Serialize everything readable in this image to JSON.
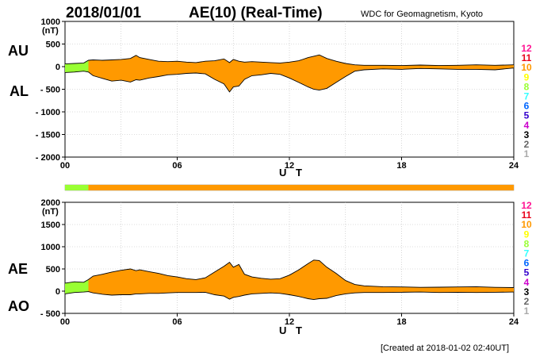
{
  "header": {
    "date": "2018/01/01",
    "title": "AE(10) (Real-Time)",
    "organization": "WDC for Geomagnetism, Kyoto"
  },
  "footer": {
    "created": "[Created at 2018-01-02 02:40UT]"
  },
  "legend": {
    "items": [
      {
        "label": "12",
        "color": "#ff1493"
      },
      {
        "label": "11",
        "color": "#e8001a"
      },
      {
        "label": "10",
        "color": "#ff9900"
      },
      {
        "label": "9",
        "color": "#ffff00"
      },
      {
        "label": "8",
        "color": "#99ff33"
      },
      {
        "label": "7",
        "color": "#33ffff"
      },
      {
        "label": "6",
        "color": "#0066ff"
      },
      {
        "label": "5",
        "color": "#3300cc"
      },
      {
        "label": "4",
        "color": "#cc00cc"
      },
      {
        "label": "3",
        "color": "#000000"
      },
      {
        "label": "2",
        "color": "#666666"
      },
      {
        "label": "1",
        "color": "#aaaaaa"
      }
    ]
  },
  "colors": {
    "ten_stations": "#ff9900",
    "eight_stations": "#99ff33",
    "outline": "#000000"
  },
  "station_bar": {
    "segments": [
      {
        "from": 0,
        "to": 1.25,
        "stations": "8"
      },
      {
        "from": 1.25,
        "to": 24,
        "stations": "10"
      }
    ]
  },
  "chart_data": [
    {
      "type": "area",
      "name": "AU/AL",
      "label_upper": "AU",
      "label_lower": "AL",
      "unit": "(nT)",
      "xlabel": "U T",
      "xlim": [
        0,
        24
      ],
      "xticks": [
        "00",
        "06",
        "12",
        "18",
        "24"
      ],
      "ylim": [
        -2000,
        1000
      ],
      "yticks": [
        "1000",
        "500",
        "0",
        "- 500",
        "- 1000",
        "- 1500",
        "- 2000"
      ],
      "ytick_values": [
        1000,
        500,
        0,
        -500,
        -1000,
        -1500,
        -2000
      ],
      "grid": true,
      "x": [
        0,
        0.5,
        1,
        1.25,
        1.5,
        2,
        2.5,
        3,
        3.5,
        3.8,
        4,
        4.5,
        5,
        5.5,
        6,
        6.5,
        7,
        7.5,
        8,
        8.5,
        8.8,
        9,
        9.3,
        9.6,
        10,
        10.5,
        11,
        11.5,
        12,
        12.5,
        13,
        13.3,
        13.6,
        14,
        14.5,
        15,
        15.5,
        16,
        17,
        18,
        19,
        20,
        21,
        22,
        23,
        24
      ],
      "upper": [
        60,
        70,
        80,
        140,
        150,
        140,
        150,
        160,
        180,
        250,
        200,
        160,
        120,
        110,
        120,
        100,
        90,
        120,
        130,
        170,
        90,
        160,
        120,
        100,
        110,
        100,
        90,
        80,
        100,
        130,
        200,
        230,
        260,
        180,
        120,
        70,
        40,
        30,
        30,
        25,
        35,
        25,
        30,
        40,
        30,
        40
      ],
      "lower": [
        -130,
        -120,
        -100,
        -120,
        -200,
        -260,
        -320,
        -300,
        -340,
        -290,
        -300,
        -250,
        -220,
        -180,
        -170,
        -150,
        -140,
        -160,
        -280,
        -380,
        -560,
        -450,
        -430,
        -280,
        -200,
        -180,
        -150,
        -170,
        -250,
        -350,
        -450,
        -500,
        -520,
        -480,
        -350,
        -220,
        -100,
        -70,
        -50,
        -60,
        -40,
        -50,
        -60,
        -60,
        -70,
        -30
      ]
    },
    {
      "type": "area",
      "name": "AE/AO",
      "label_upper": "AE",
      "label_lower": "AO",
      "unit": "(nT)",
      "xlabel": "U T",
      "xlim": [
        0,
        24
      ],
      "xticks": [
        "00",
        "06",
        "12",
        "18",
        "24"
      ],
      "ylim": [
        -500,
        2000
      ],
      "yticks": [
        "2000",
        "1500",
        "1000",
        "500",
        "0",
        "- 500"
      ],
      "ytick_values": [
        2000,
        1500,
        1000,
        500,
        0,
        -500
      ],
      "grid": true,
      "x": [
        0,
        0.5,
        1,
        1.25,
        1.5,
        2,
        2.5,
        3,
        3.5,
        3.8,
        4,
        4.5,
        5,
        5.5,
        6,
        6.5,
        7,
        7.5,
        8,
        8.5,
        8.8,
        9,
        9.3,
        9.6,
        10,
        10.5,
        11,
        11.5,
        12,
        12.5,
        13,
        13.3,
        13.6,
        14,
        14.5,
        15,
        15.5,
        16,
        17,
        18,
        19,
        20,
        21,
        22,
        23,
        24
      ],
      "upper": [
        180,
        210,
        200,
        260,
        340,
        380,
        430,
        470,
        500,
        460,
        480,
        440,
        400,
        350,
        320,
        280,
        260,
        300,
        430,
        560,
        650,
        540,
        600,
        380,
        320,
        290,
        270,
        280,
        360,
        480,
        620,
        700,
        690,
        540,
        400,
        240,
        150,
        120,
        100,
        95,
        85,
        90,
        95,
        100,
        85,
        80
      ],
      "lower": [
        -60,
        -30,
        -20,
        -10,
        -40,
        -70,
        -90,
        -80,
        -80,
        -60,
        -60,
        -50,
        -50,
        -40,
        -30,
        -30,
        -30,
        -25,
        -80,
        -110,
        -180,
        -140,
        -120,
        -90,
        -60,
        -50,
        -40,
        -50,
        -80,
        -120,
        -170,
        -190,
        -170,
        -160,
        -100,
        -60,
        -40,
        -30,
        -30,
        -25,
        -20,
        -30,
        -25,
        -30,
        -25,
        -20
      ]
    }
  ]
}
